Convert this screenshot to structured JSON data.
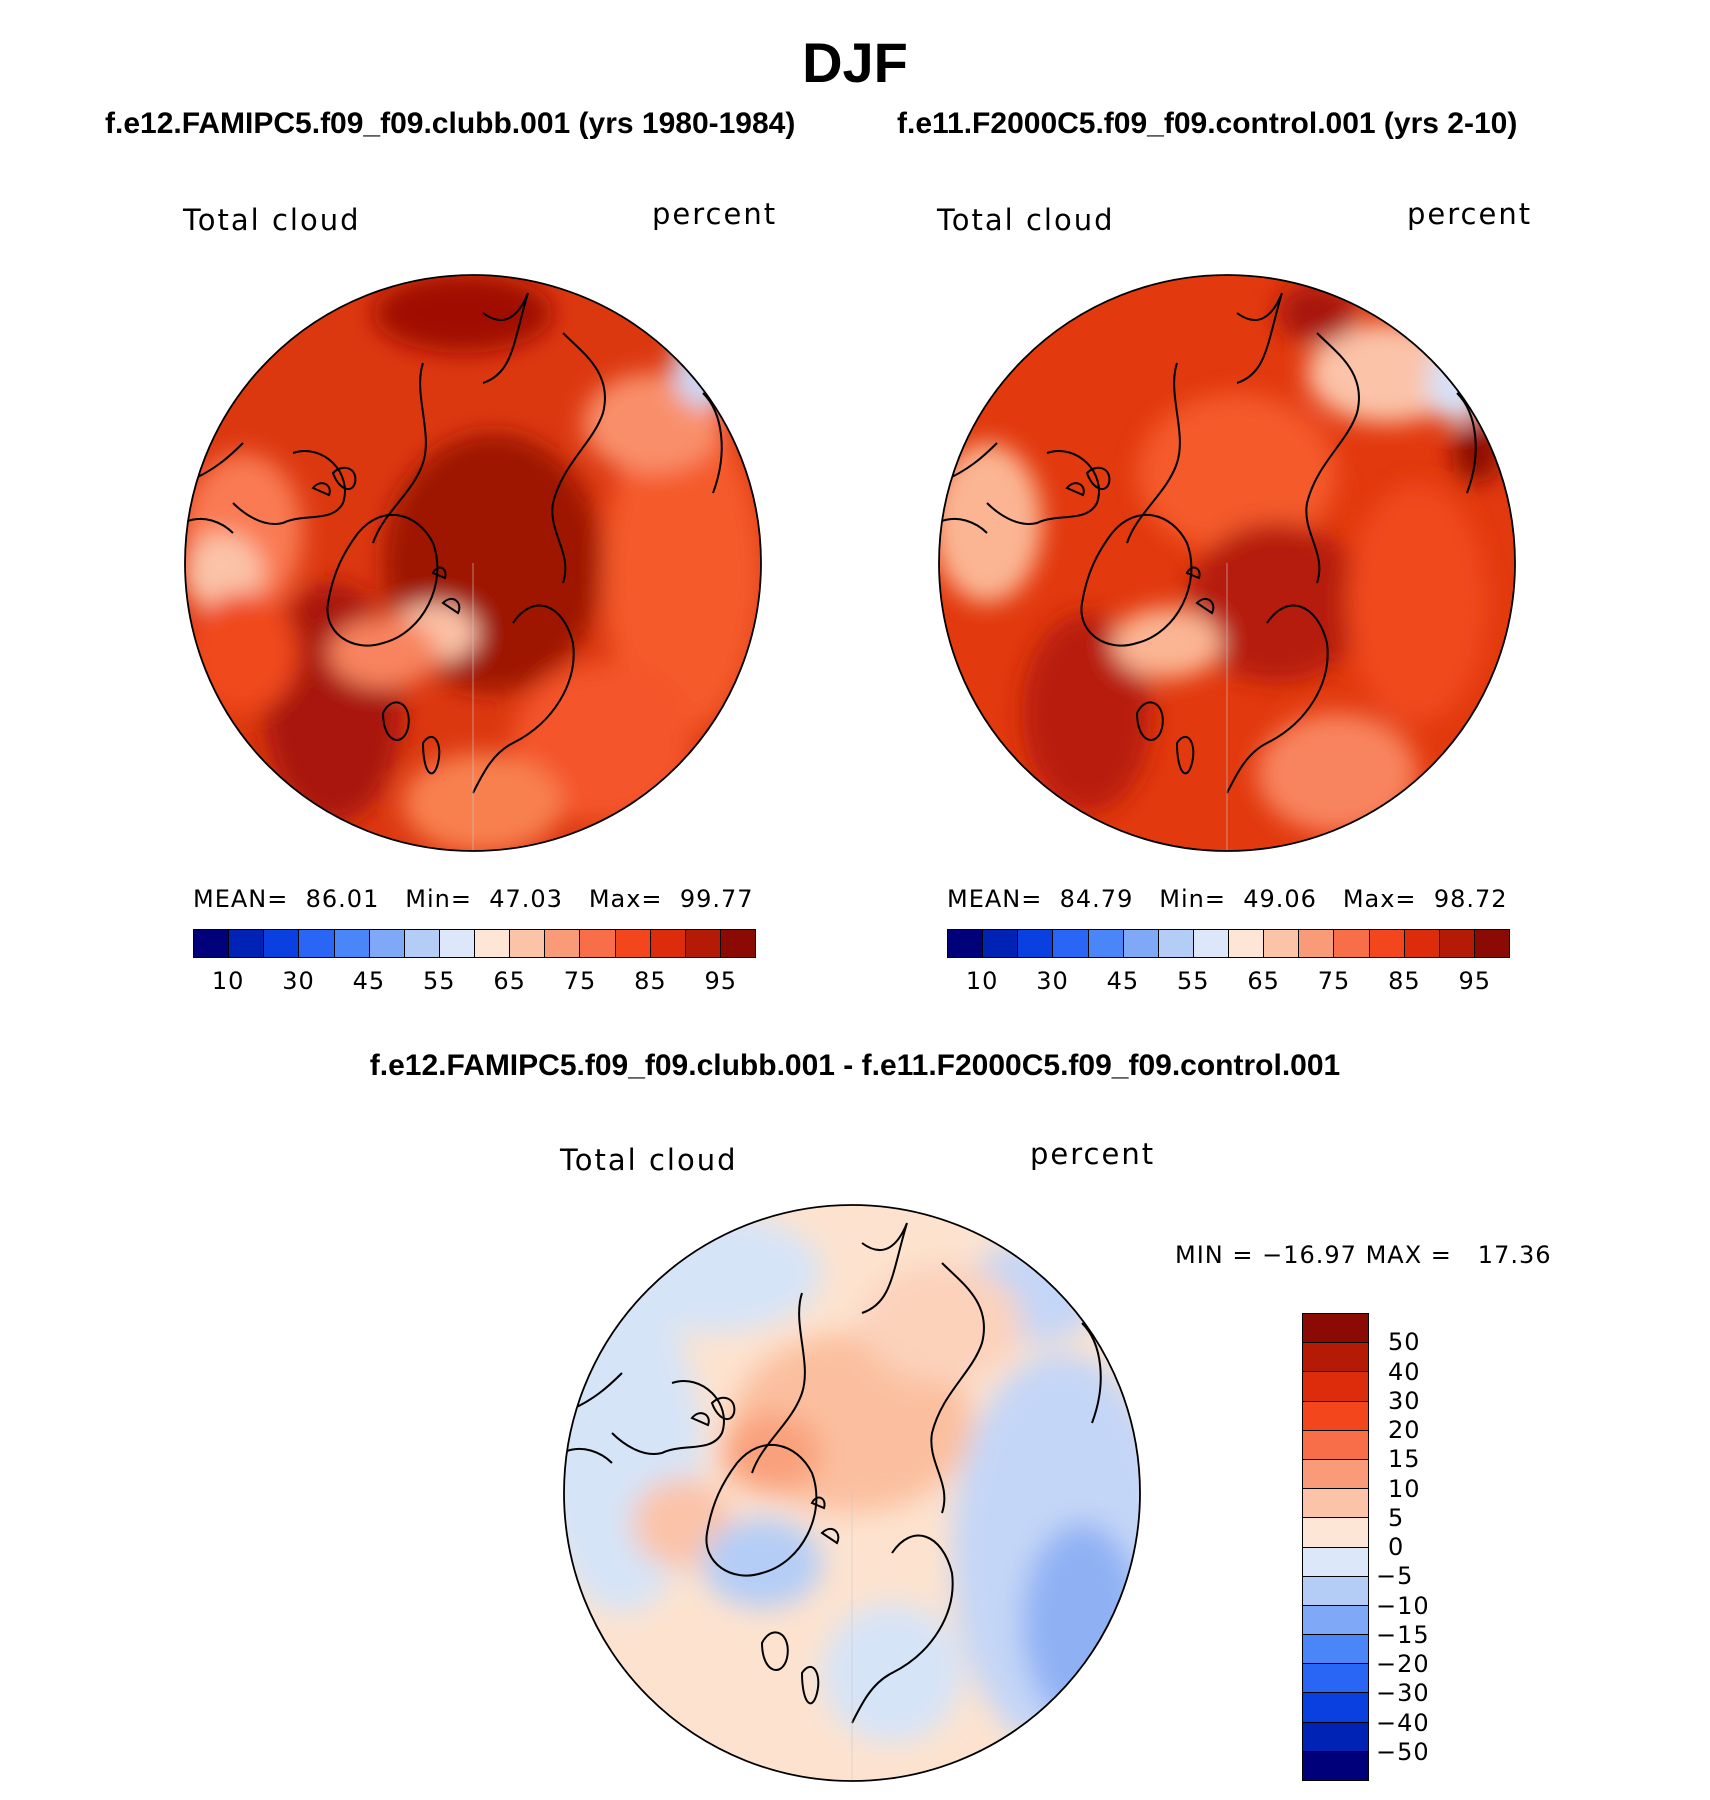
{
  "title": "DJF",
  "panels": [
    {
      "case_title": "f.e12.FAMIPC5.f09_f09.clubb.001 (yrs 1980-1984)",
      "variable": "Total cloud",
      "units": "percent",
      "stats": {
        "mean_label": "MEAN=",
        "mean": "86.01",
        "min_label": "Min=",
        "min": "47.03",
        "max_label": "Max=",
        "max": "99.77"
      },
      "colorbar_ticks": [
        "10",
        "30",
        "45",
        "55",
        "65",
        "75",
        "85",
        "95"
      ]
    },
    {
      "case_title": "f.e11.F2000C5.f09_f09.control.001 (yrs 2-10)",
      "variable": "Total cloud",
      "units": "percent",
      "stats": {
        "mean_label": "MEAN=",
        "mean": "84.79",
        "min_label": "Min=",
        "min": "49.06",
        "max_label": "Max=",
        "max": "98.72"
      },
      "colorbar_ticks": [
        "10",
        "30",
        "45",
        "55",
        "65",
        "75",
        "85",
        "95"
      ]
    }
  ],
  "diff_panel": {
    "title": "f.e12.FAMIPC5.f09_f09.clubb.001 - f.e11.F2000C5.f09_f09.control.001",
    "variable": "Total cloud",
    "units": "percent",
    "min_label": "MIN =",
    "min": "−16.97",
    "max_label": "MAX =",
    "max": "17.36",
    "colorbar_ticks": [
      "50",
      "40",
      "30",
      "20",
      "15",
      "10",
      "5",
      "0",
      "−5",
      "−10",
      "−15",
      "−20",
      "−30",
      "−40",
      "−50"
    ]
  },
  "colors": {
    "abs_scale": [
      "#00007a",
      "#0022b5",
      "#0a3fe0",
      "#2a66f5",
      "#4a86f7",
      "#7fa8f6",
      "#b4cdf7",
      "#dce8fa",
      "#fde6d5",
      "#fbc3a8",
      "#f99a78",
      "#f76e48",
      "#f3461c",
      "#dc2c0c",
      "#b51a07",
      "#8c0a04"
    ],
    "diff_scale": [
      "#8c0a04",
      "#b51a07",
      "#dc2c0c",
      "#f3461c",
      "#f76e48",
      "#f99a78",
      "#fbc3a8",
      "#fde6d5",
      "#dce8fa",
      "#b4cdf7",
      "#7fa8f6",
      "#4a86f7",
      "#2a66f5",
      "#0a3fe0",
      "#0022b5",
      "#00007a"
    ]
  }
}
